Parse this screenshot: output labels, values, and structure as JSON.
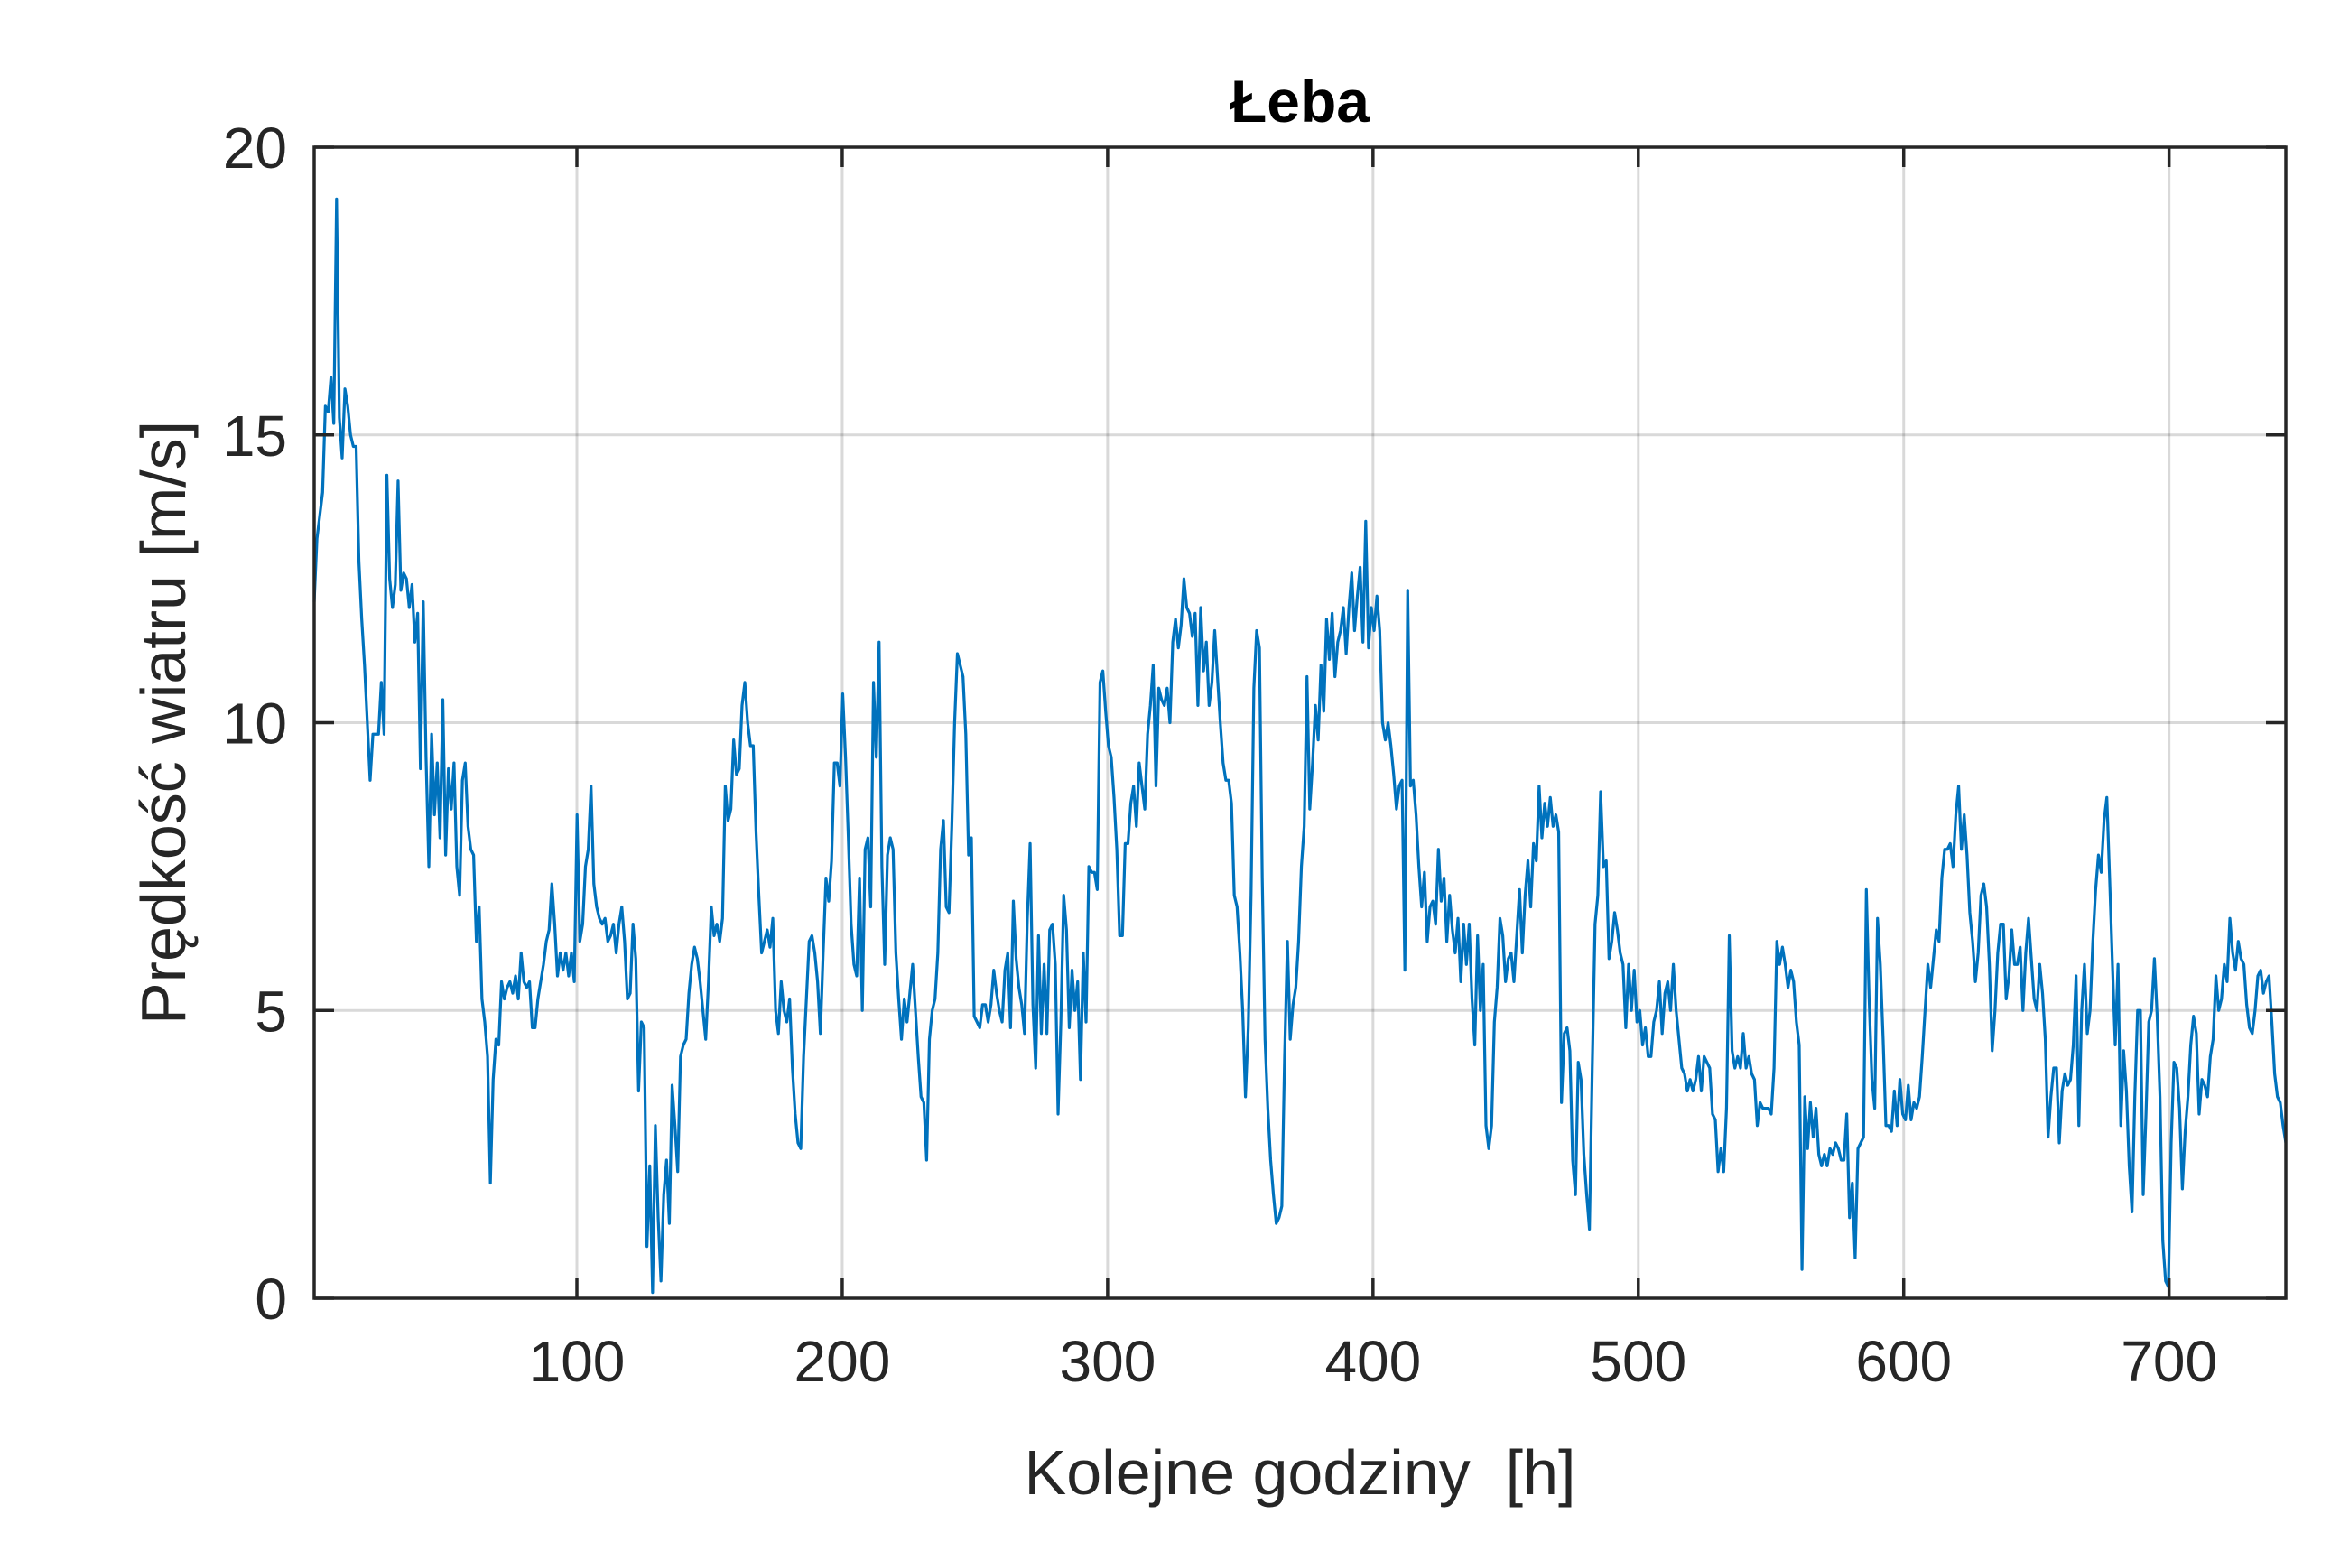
{
  "chart_data": {
    "type": "line",
    "title": "Łeba",
    "xlabel": "Kolejne godziny  [h]",
    "ylabel": "Prędkość wiatru [m/s]",
    "xlim": [
      1,
      744
    ],
    "ylim": [
      0,
      20
    ],
    "xticks": [
      100,
      200,
      300,
      400,
      500,
      600,
      700
    ],
    "yticks": [
      0,
      5,
      10,
      15,
      20
    ],
    "grid": true,
    "line_color": "#0072BD",
    "series": [
      {
        "values": [
          12.1,
          13.2,
          13.6,
          14.0,
          15.5,
          15.4,
          16.0,
          15.2,
          19.1,
          15.3,
          14.6,
          15.8,
          15.5,
          15.0,
          14.8,
          14.8,
          12.8,
          11.8,
          11.0,
          10.0,
          9.0,
          9.8,
          9.8,
          9.8,
          10.7,
          9.8,
          14.3,
          12.5,
          12.0,
          12.4,
          14.2,
          12.3,
          12.6,
          12.5,
          12.0,
          12.4,
          11.4,
          11.9,
          9.2,
          12.1,
          9.4,
          7.5,
          9.8,
          8.4,
          9.3,
          8.0,
          10.4,
          7.7,
          9.2,
          8.5,
          9.3,
          7.5,
          7.0,
          9.0,
          9.3,
          8.2,
          7.8,
          7.7,
          6.2,
          6.8,
          5.2,
          4.8,
          4.2,
          2.0,
          3.8,
          4.5,
          4.4,
          5.5,
          5.2,
          5.4,
          5.5,
          5.3,
          5.6,
          5.2,
          6.0,
          5.5,
          5.4,
          5.5,
          4.7,
          4.7,
          5.2,
          5.5,
          5.8,
          6.2,
          6.4,
          7.2,
          6.5,
          5.6,
          6.0,
          5.7,
          6.0,
          5.6,
          6.0,
          5.5,
          8.4,
          6.2,
          6.5,
          7.5,
          7.8,
          8.9,
          7.2,
          6.8,
          6.6,
          6.5,
          6.6,
          6.2,
          6.3,
          6.5,
          6.0,
          6.5,
          6.8,
          6.2,
          5.2,
          5.3,
          6.5,
          5.9,
          3.6,
          4.8,
          4.7,
          0.9,
          2.3,
          0.1,
          3.0,
          1.4,
          0.3,
          1.8,
          2.4,
          1.3,
          3.7,
          3.0,
          2.2,
          4.2,
          4.4,
          4.5,
          5.3,
          5.8,
          6.1,
          5.9,
          5.5,
          5.0,
          4.5,
          5.5,
          6.8,
          6.3,
          6.5,
          6.2,
          6.6,
          8.9,
          8.3,
          8.5,
          9.7,
          9.1,
          9.2,
          10.3,
          10.7,
          10.0,
          9.6,
          9.6,
          8.1,
          7.0,
          6.0,
          6.2,
          6.4,
          6.1,
          6.6,
          5.0,
          4.6,
          5.5,
          5.0,
          4.8,
          5.2,
          4.0,
          3.2,
          2.7,
          2.6,
          4.2,
          5.2,
          6.2,
          6.3,
          6.0,
          5.5,
          4.6,
          6.0,
          7.3,
          6.9,
          7.6,
          9.3,
          9.3,
          8.9,
          10.5,
          9.4,
          8.0,
          6.5,
          5.8,
          5.6,
          7.3,
          5.0,
          7.8,
          8.0,
          6.8,
          10.7,
          9.4,
          11.4,
          7.5,
          5.8,
          7.7,
          8.0,
          7.8,
          6.0,
          5.2,
          4.5,
          5.2,
          4.8,
          5.3,
          5.8,
          5.0,
          4.2,
          3.5,
          3.4,
          2.4,
          4.5,
          5.0,
          5.2,
          6.0,
          7.8,
          8.3,
          6.8,
          6.7,
          8.2,
          10.0,
          11.2,
          11.0,
          10.8,
          9.8,
          7.7,
          8.0,
          4.9,
          4.8,
          4.7,
          5.1,
          5.1,
          4.8,
          5.1,
          5.7,
          5.3,
          5.0,
          4.8,
          5.7,
          6.0,
          4.7,
          6.9,
          5.9,
          5.4,
          5.1,
          4.6,
          6.6,
          7.9,
          5.1,
          4.0,
          6.3,
          4.6,
          5.8,
          4.6,
          6.4,
          6.5,
          5.8,
          3.2,
          4.8,
          7.0,
          6.4,
          4.7,
          5.7,
          5.0,
          5.5,
          3.8,
          6.0,
          4.8,
          7.5,
          7.4,
          7.4,
          7.1,
          10.7,
          10.9,
          10.2,
          9.6,
          9.4,
          8.7,
          7.8,
          6.3,
          6.3,
          7.9,
          7.9,
          8.6,
          8.9,
          8.2,
          9.3,
          8.9,
          8.5,
          9.8,
          10.3,
          11.0,
          8.9,
          10.6,
          10.4,
          10.3,
          10.6,
          10.0,
          11.4,
          11.8,
          11.3,
          11.7,
          12.5,
          12.0,
          11.9,
          11.5,
          11.9,
          10.3,
          12.0,
          10.9,
          11.4,
          10.3,
          10.7,
          11.6,
          10.8,
          10.0,
          9.3,
          9.0,
          9.0,
          8.6,
          7.0,
          6.8,
          6.0,
          5.0,
          3.5,
          4.7,
          7.0,
          10.6,
          11.6,
          11.3,
          7.3,
          4.5,
          3.3,
          2.4,
          1.8,
          1.3,
          1.4,
          1.6,
          4.2,
          6.2,
          4.5,
          5.1,
          5.4,
          6.2,
          7.5,
          8.2,
          10.8,
          8.5,
          9.3,
          10.3,
          9.7,
          11.0,
          10.2,
          11.8,
          11.1,
          11.9,
          10.8,
          11.4,
          11.6,
          12.0,
          11.2,
          12.0,
          12.6,
          11.6,
          12.2,
          12.7,
          11.4,
          13.5,
          11.3,
          12.0,
          11.6,
          12.2,
          11.6,
          10.0,
          9.7,
          10.0,
          9.6,
          9.1,
          8.5,
          8.9,
          9.0,
          5.7,
          12.3,
          8.9,
          9.0,
          8.4,
          7.5,
          6.8,
          7.4,
          6.2,
          6.8,
          6.9,
          6.5,
          7.8,
          6.9,
          7.3,
          6.2,
          7.0,
          6.4,
          6.0,
          6.6,
          5.5,
          6.5,
          5.8,
          6.5,
          5.2,
          4.4,
          6.3,
          5.0,
          5.8,
          3.0,
          2.6,
          3.0,
          4.8,
          5.4,
          6.6,
          6.3,
          5.5,
          5.9,
          6.0,
          5.5,
          6.3,
          7.1,
          6.0,
          7.0,
          7.6,
          6.8,
          7.9,
          7.6,
          8.9,
          8.0,
          8.6,
          8.2,
          8.7,
          8.2,
          8.4,
          8.1,
          3.4,
          4.6,
          4.7,
          4.3,
          2.4,
          1.8,
          4.1,
          3.8,
          2.5,
          1.8,
          1.2,
          4.0,
          6.5,
          7.0,
          8.8,
          7.5,
          7.6,
          5.9,
          6.2,
          6.7,
          6.4,
          6.0,
          5.8,
          4.7,
          5.8,
          5.0,
          5.7,
          4.8,
          5.0,
          4.4,
          4.7,
          4.2,
          4.2,
          4.8,
          5.0,
          5.5,
          4.6,
          5.3,
          5.5,
          5.0,
          5.8,
          5.0,
          4.5,
          4.0,
          3.9,
          3.6,
          3.8,
          3.6,
          3.8,
          4.2,
          3.6,
          4.2,
          4.1,
          4.0,
          3.2,
          3.1,
          2.2,
          2.6,
          2.2,
          3.3,
          6.3,
          4.3,
          4.0,
          4.2,
          4.0,
          4.6,
          4.0,
          4.2,
          3.9,
          3.8,
          3.0,
          3.4,
          3.3,
          3.3,
          3.3,
          3.2,
          4.0,
          6.2,
          5.8,
          6.1,
          5.8,
          5.4,
          5.7,
          5.5,
          4.8,
          4.4,
          0.5,
          3.5,
          2.6,
          3.4,
          2.8,
          3.3,
          2.5,
          2.3,
          2.5,
          2.3,
          2.6,
          2.5,
          2.7,
          2.6,
          2.4,
          2.4,
          3.2,
          1.4,
          2.0,
          0.7,
          2.6,
          2.7,
          2.8,
          7.1,
          5.2,
          3.8,
          3.3,
          6.6,
          5.8,
          4.5,
          3.0,
          3.0,
          2.9,
          3.6,
          3.0,
          3.8,
          3.2,
          3.1,
          3.7,
          3.1,
          3.4,
          3.3,
          3.5,
          4.2,
          5.0,
          5.8,
          5.4,
          5.9,
          6.4,
          6.2,
          7.3,
          7.8,
          7.8,
          7.9,
          7.5,
          8.4,
          8.9,
          7.8,
          8.4,
          7.7,
          6.7,
          6.2,
          5.5,
          6.0,
          7.0,
          7.2,
          6.8,
          5.8,
          4.3,
          5.0,
          6.0,
          6.5,
          6.5,
          5.2,
          5.6,
          6.4,
          5.8,
          5.8,
          6.1,
          5.0,
          6.0,
          6.6,
          5.9,
          5.2,
          5.0,
          5.8,
          5.3,
          4.5,
          2.8,
          3.5,
          4.0,
          4.0,
          2.7,
          3.6,
          3.9,
          3.7,
          3.8,
          4.4,
          5.6,
          3.0,
          5.0,
          5.8,
          4.6,
          5.0,
          6.2,
          7.1,
          7.7,
          7.4,
          8.3,
          8.7,
          7.3,
          5.8,
          4.4,
          5.8,
          3.0,
          4.3,
          3.6,
          2.3,
          1.5,
          3.5,
          5.0,
          5.0,
          1.8,
          3.2,
          4.8,
          5.0,
          5.9,
          4.9,
          3.5,
          1.0,
          0.3,
          0.2,
          2.7,
          4.1,
          4.0,
          3.3,
          1.9,
          2.9,
          3.5,
          4.4,
          4.9,
          4.6,
          3.2,
          3.8,
          3.7,
          3.5,
          4.2,
          4.5,
          5.6,
          5.0,
          5.2,
          5.8,
          5.5,
          6.6,
          6.0,
          5.7,
          6.2,
          5.9,
          5.8,
          5.1,
          4.7,
          4.6,
          5.0,
          5.6,
          5.7,
          5.3,
          5.5,
          5.6,
          4.8,
          3.9,
          3.5,
          3.4,
          3.0,
          2.7
        ]
      }
    ]
  }
}
